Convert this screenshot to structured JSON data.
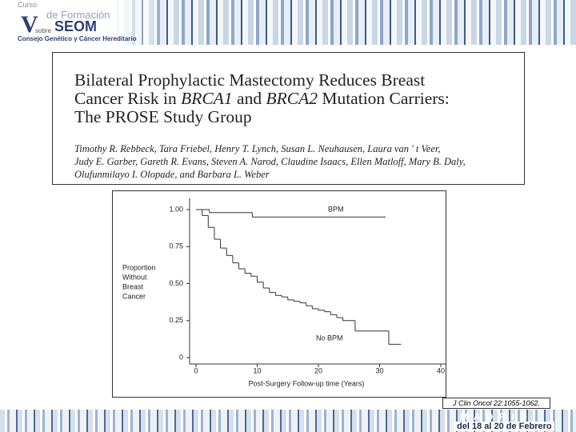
{
  "header": {
    "logo_top": "Curso",
    "logo_course": "de Formación",
    "logo_sobre": "sobre",
    "logo_org": "SEOM",
    "logo_subtitle": "Consejo Genético y Cáncer Hereditario"
  },
  "paper": {
    "title_lines": [
      [
        {
          "text": "Bilateral Prophylactic Mastectomy Reduces Breast"
        }
      ],
      [
        {
          "text": "Cancer Risk in "
        },
        {
          "text": "BRCA1",
          "italic": true
        },
        {
          "text": " and "
        },
        {
          "text": "BRCA2",
          "italic": true
        },
        {
          "text": " Mutation Carriers:"
        }
      ],
      [
        {
          "text": "The PROSE Study Group"
        }
      ]
    ],
    "author_lines": [
      "Timothy R. Rebbeck, Tara Friebel, Henry T. Lynch, Susan L. Neuhausen, Laura van ' t Veer,",
      "Judy E. Garber, Gareth R. Evans, Steven A. Narod, Claudine Isaacs, Ellen Matloff, Mary B. Daly,",
      "Olufunmilayo I. Olopade, and Barbara L. Weber"
    ]
  },
  "chart_data": {
    "type": "step",
    "xlabel": "Post-Surgery Follow-up time (Years)",
    "ylabel_lines": [
      "Proportion",
      "Without",
      "Breast",
      "Cancer"
    ],
    "xlim": [
      0,
      40
    ],
    "xticks": [
      0,
      10,
      20,
      30,
      40
    ],
    "ylim": [
      0,
      1
    ],
    "yticks": [
      {
        "value": 0,
        "label": "0"
      },
      {
        "value": 0.25,
        "label": "0.25"
      },
      {
        "value": 0.5,
        "label": "0.50"
      },
      {
        "value": 0.75,
        "label": "0.75"
      },
      {
        "value": 1,
        "label": "1.00"
      }
    ],
    "series": [
      {
        "name": "BPM",
        "color": "#333333",
        "x": [
          0,
          2.2,
          9.2,
          31
        ],
        "values": [
          1,
          0.98,
          0.95,
          0.95
        ]
      },
      {
        "name": "No BPM",
        "color": "#333333",
        "x": [
          0,
          1,
          2,
          3,
          4,
          5,
          6,
          7,
          8,
          9,
          10,
          11,
          12,
          13,
          14,
          15,
          16,
          17,
          18,
          19,
          20,
          21,
          22,
          23,
          24,
          26,
          31.5,
          33.5
        ],
        "values": [
          1,
          0.96,
          0.88,
          0.8,
          0.74,
          0.69,
          0.64,
          0.6,
          0.57,
          0.55,
          0.51,
          0.47,
          0.44,
          0.42,
          0.41,
          0.39,
          0.38,
          0.37,
          0.35,
          0.33,
          0.32,
          0.31,
          0.29,
          0.27,
          0.25,
          0.18,
          0.09,
          0.09
        ]
      }
    ]
  },
  "citation": "J Clin Oncol 22:1055-1062.",
  "footer": {
    "city": "M A D R I D",
    "dates": "del 18 al 20 de Febrero"
  }
}
